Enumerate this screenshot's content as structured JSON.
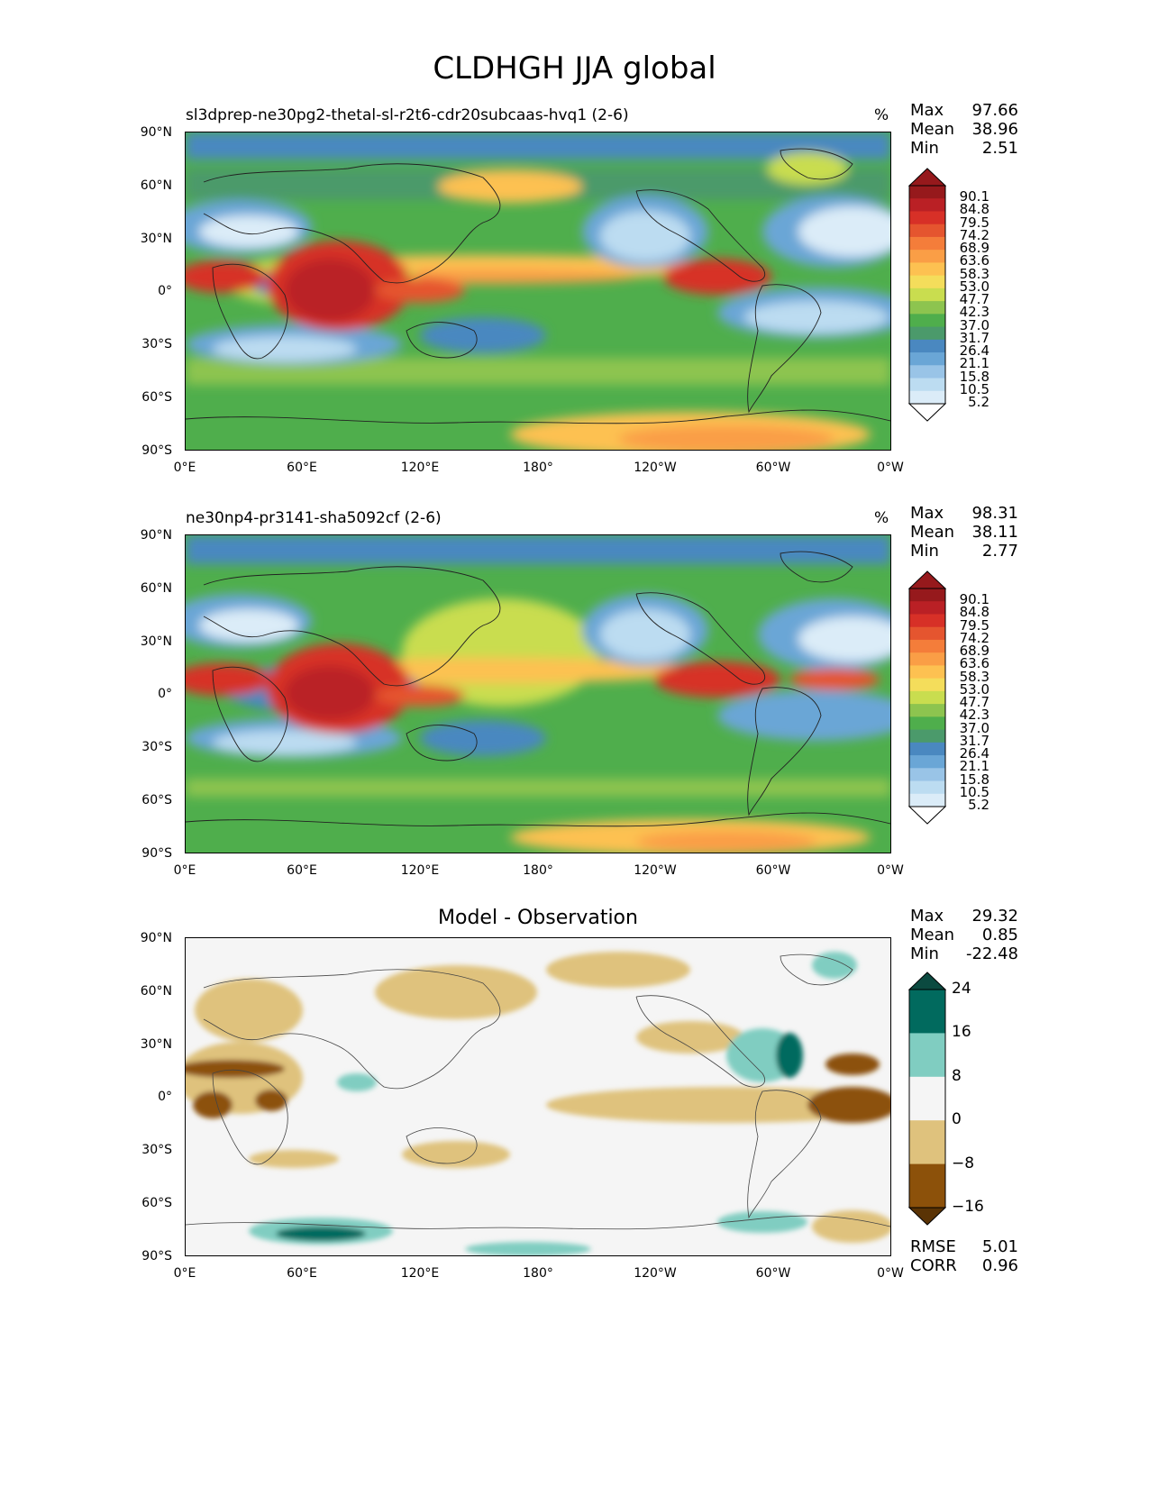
{
  "figure": {
    "title": "CLDHGH JJA global"
  },
  "chart_data": [
    {
      "type": "heatmap",
      "title": "sl3dprep-ne30pg2-thetal-sl-r2t6-cdr20subcaas-hvq1 (2-6)",
      "units": "%",
      "stats": {
        "max_label": "Max",
        "max": "97.66",
        "mean_label": "Mean",
        "mean": "38.96",
        "min_label": "Min",
        "min": "2.51"
      },
      "y_ticks": [
        "90°N",
        "60°N",
        "30°N",
        "0°",
        "30°S",
        "60°S",
        "90°S"
      ],
      "x_ticks": [
        "0°E",
        "60°E",
        "120°E",
        "180°",
        "120°W",
        "60°W",
        "0°W"
      ],
      "colorbar_levels": [
        "90.1",
        "84.8",
        "79.5",
        "74.2",
        "68.9",
        "63.6",
        "58.3",
        "53.0",
        "47.7",
        "42.3",
        "37.0",
        "31.7",
        "26.4",
        "21.1",
        "15.8",
        "10.5",
        "5.2"
      ],
      "colorbar_colors": [
        "#96191c",
        "#ba2025",
        "#d73027",
        "#e5552f",
        "#f47d3a",
        "#fa9e46",
        "#fdc151",
        "#f4dd5b",
        "#c9dd4f",
        "#8dc44f",
        "#4fae4c",
        "#4b9a6b",
        "#4a88c0",
        "#6aa6d6",
        "#99c4e7",
        "#bcdcf1",
        "#dbecf8",
        "#ffffff"
      ]
    },
    {
      "type": "heatmap",
      "title": "ne30np4-pr3141-sha5092cf (2-6)",
      "units": "%",
      "stats": {
        "max_label": "Max",
        "max": "98.31",
        "mean_label": "Mean",
        "mean": "38.11",
        "min_label": "Min",
        "min": "2.77"
      },
      "y_ticks": [
        "90°N",
        "60°N",
        "30°N",
        "0°",
        "30°S",
        "60°S",
        "90°S"
      ],
      "x_ticks": [
        "0°E",
        "60°E",
        "120°E",
        "180°",
        "120°W",
        "60°W",
        "0°W"
      ],
      "colorbar_levels": [
        "90.1",
        "84.8",
        "79.5",
        "74.2",
        "68.9",
        "63.6",
        "58.3",
        "53.0",
        "47.7",
        "42.3",
        "37.0",
        "31.7",
        "26.4",
        "21.1",
        "15.8",
        "10.5",
        "5.2"
      ],
      "colorbar_colors": [
        "#96191c",
        "#ba2025",
        "#d73027",
        "#e5552f",
        "#f47d3a",
        "#fa9e46",
        "#fdc151",
        "#f4dd5b",
        "#c9dd4f",
        "#8dc44f",
        "#4fae4c",
        "#4b9a6b",
        "#4a88c0",
        "#6aa6d6",
        "#99c4e7",
        "#bcdcf1",
        "#dbecf8",
        "#ffffff"
      ]
    },
    {
      "type": "heatmap",
      "title": "Model - Observation",
      "stats": {
        "max_label": "Max",
        "max": "29.32",
        "mean_label": "Mean",
        "mean": "0.85",
        "min_label": "Min",
        "min": "-22.48"
      },
      "metrics": {
        "rmse_label": "RMSE",
        "rmse": "5.01",
        "corr_label": "CORR",
        "corr": "0.96"
      },
      "y_ticks": [
        "90°N",
        "60°N",
        "30°N",
        "0°",
        "30°S",
        "60°S",
        "90°S"
      ],
      "x_ticks": [
        "0°E",
        "60°E",
        "120°E",
        "180°",
        "120°W",
        "60°W",
        "0°W"
      ],
      "colorbar_levels": [
        "24",
        "16",
        "8",
        "0",
        "−8",
        "−16"
      ],
      "colorbar_colors": [
        "#0b4a40",
        "#016a5e",
        "#80cdc1",
        "#f5f5f5",
        "#dfc27d",
        "#8c510a",
        "#5a3305"
      ]
    }
  ]
}
